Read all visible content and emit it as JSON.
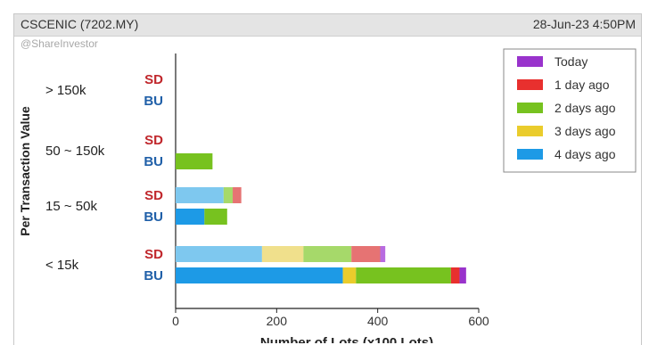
{
  "header": {
    "title": "CSCENIC (7202.MY)",
    "datetime": "28-Jun-23 4:50PM"
  },
  "watermark": "@ShareInvestor",
  "chart_data": {
    "type": "bar",
    "orientation": "horizontal",
    "stacked": true,
    "ylabel": "Per Transaction Value",
    "xlabel": "Number of Lots (x100 Lots)",
    "xlim": [
      0,
      600
    ],
    "xticks": [
      0,
      200,
      400,
      600
    ],
    "groups": [
      "> 150k",
      "50 ~ 150k",
      "15 ~ 50k",
      "< 15k"
    ],
    "row_types": [
      "SD",
      "BU"
    ],
    "row_colors": {
      "SD": "#c0262b",
      "BU": "#1f5fa8"
    },
    "legend_position": "top-right",
    "series": [
      {
        "name": "Today",
        "color": "#9933cc",
        "sd_color": "#b86be0",
        "values": {
          "> 150k": {
            "SD": 0,
            "BU": 0
          },
          "50 ~ 150k": {
            "SD": 0,
            "BU": 0
          },
          "15 ~ 50k": {
            "SD": 0,
            "BU": 0
          },
          "< 15k": {
            "SD": 10,
            "BU": 13
          }
        }
      },
      {
        "name": "1 day ago",
        "color": "#e8302e",
        "sd_color": "#e67373",
        "values": {
          "> 150k": {
            "SD": 0,
            "BU": 0
          },
          "50 ~ 150k": {
            "SD": 0,
            "BU": 0
          },
          "15 ~ 50k": {
            "SD": 17,
            "BU": 0
          },
          "< 15k": {
            "SD": 57,
            "BU": 17
          }
        }
      },
      {
        "name": "2 days ago",
        "color": "#77c21f",
        "sd_color": "#a6d96a",
        "values": {
          "> 150k": {
            "SD": 0,
            "BU": 0
          },
          "50 ~ 150k": {
            "SD": 0,
            "BU": 73
          },
          "15 ~ 50k": {
            "SD": 18,
            "BU": 45
          },
          "< 15k": {
            "SD": 95,
            "BU": 188
          }
        }
      },
      {
        "name": "3 days ago",
        "color": "#eacc2c",
        "sd_color": "#f0e08c",
        "values": {
          "> 150k": {
            "SD": 0,
            "BU": 0
          },
          "50 ~ 150k": {
            "SD": 0,
            "BU": 0
          },
          "15 ~ 50k": {
            "SD": 0,
            "BU": 0
          },
          "< 15k": {
            "SD": 82,
            "BU": 26
          }
        }
      },
      {
        "name": "4 days ago",
        "color": "#1d9ae6",
        "sd_color": "#7ec8ef",
        "values": {
          "> 150k": {
            "SD": 0,
            "BU": 0
          },
          "50 ~ 150k": {
            "SD": 0,
            "BU": 0
          },
          "15 ~ 50k": {
            "SD": 95,
            "BU": 57
          },
          "< 15k": {
            "SD": 171,
            "BU": 331
          }
        }
      }
    ]
  }
}
